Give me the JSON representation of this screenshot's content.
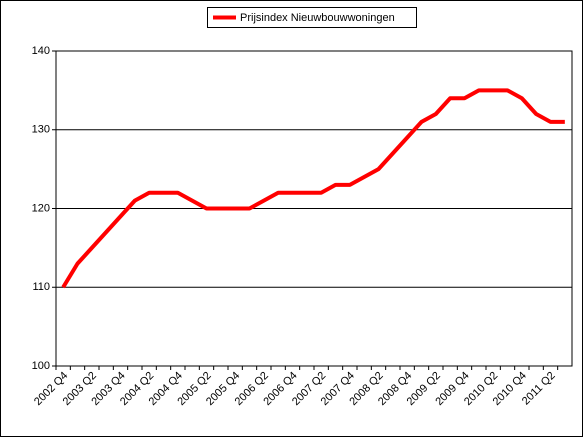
{
  "chart_data": {
    "type": "line",
    "categories": [
      "2002 Q4",
      null,
      "2003 Q2",
      null,
      "2003 Q4",
      null,
      "2004 Q2",
      null,
      "2004 Q4",
      null,
      "2005 Q2",
      null,
      "2005 Q4",
      null,
      "2006 Q2",
      null,
      "2006 Q4",
      null,
      "2007 Q2",
      null,
      "2007 Q4",
      null,
      "2008 Q2",
      null,
      "2008 Q4",
      null,
      "2009 Q2",
      null,
      "2009 Q4",
      null,
      "2010 Q2",
      null,
      "2010 Q4",
      null,
      "2011 Q2",
      null
    ],
    "series": [
      {
        "name": "Prijsindex Nieuwbouwwoningen",
        "color": "#ff0000",
        "values": [
          110,
          113,
          115,
          117,
          119,
          121,
          122,
          122,
          122,
          121,
          120,
          120,
          120,
          120,
          121,
          122,
          122,
          122,
          122,
          123,
          123,
          124,
          125,
          127,
          129,
          131,
          132,
          134,
          134,
          135,
          135,
          135,
          134,
          132,
          131,
          131
        ]
      }
    ],
    "ylim": [
      100,
      140
    ],
    "yticks": [
      100,
      110,
      120,
      130,
      140
    ],
    "grid": true,
    "legend": "top"
  }
}
